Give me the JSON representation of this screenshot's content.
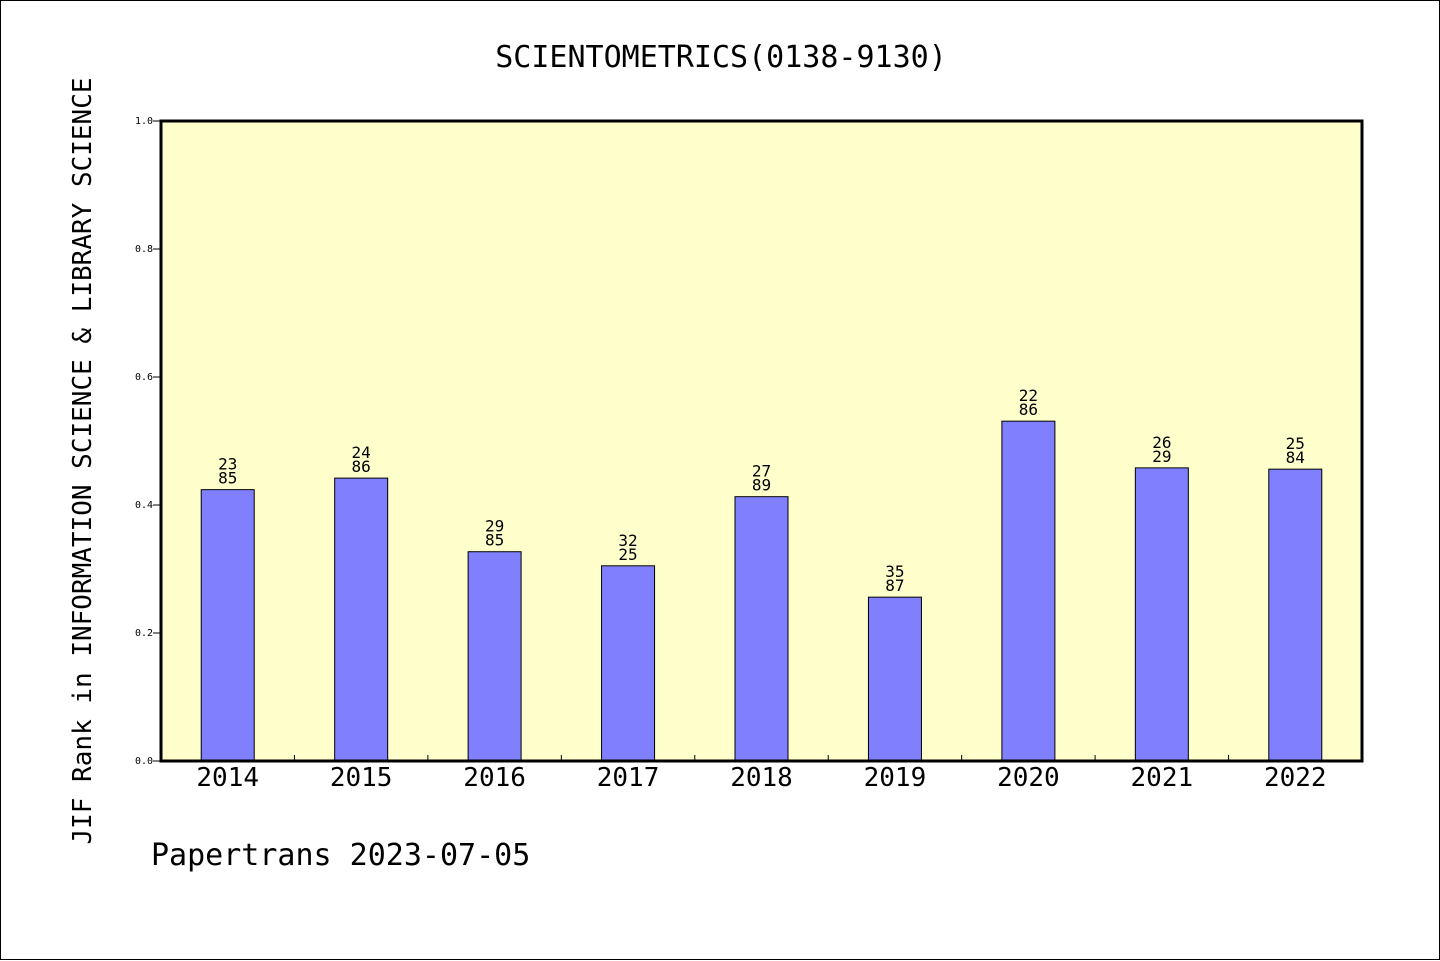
{
  "chart_data": {
    "type": "bar",
    "title": "SCIENTOMETRICS(0138-9130)",
    "ylabel": "JIF Rank in INFORMATION SCIENCE & LIBRARY SCIENCE",
    "xlabel": "",
    "ylim": [
      0,
      1.0
    ],
    "yticks": [
      "0.0",
      "0.2",
      "0.4",
      "0.6",
      "0.8",
      "1.0"
    ],
    "grid": false,
    "categories": [
      "2014",
      "2015",
      "2016",
      "2017",
      "2018",
      "2019",
      "2020",
      "2021",
      "2022"
    ],
    "values": [
      0.424,
      0.442,
      0.327,
      0.305,
      0.413,
      0.256,
      0.531,
      0.458,
      0.456
    ],
    "labels": [
      [
        "23",
        "85"
      ],
      [
        "24",
        "86"
      ],
      [
        "29",
        "85"
      ],
      [
        "32",
        "25"
      ],
      [
        "27",
        "89"
      ],
      [
        "35",
        "87"
      ],
      [
        "22",
        "86"
      ],
      [
        "26",
        "29"
      ],
      [
        "25",
        "84"
      ]
    ],
    "bar_color": "#8080ff",
    "plot_background": "#ffffcc",
    "footer": "Papertrans 2023-07-05"
  }
}
